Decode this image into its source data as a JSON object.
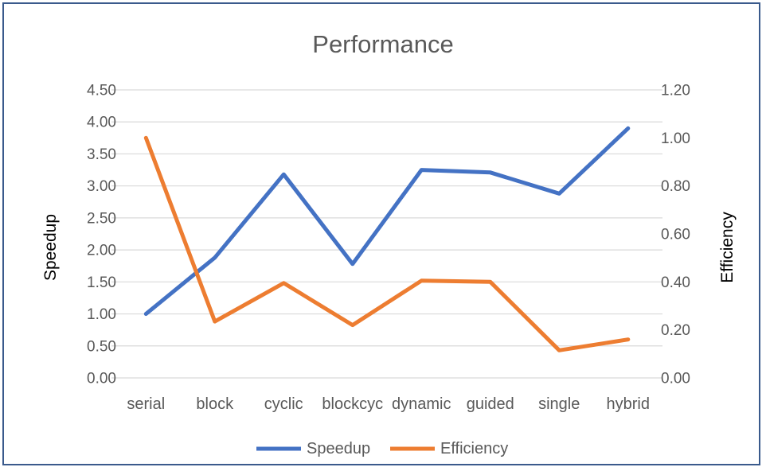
{
  "chart_data": {
    "type": "line",
    "title": "Performance",
    "categories": [
      "serial",
      "block",
      "cyclic",
      "blockcyc",
      "dynamic",
      "guided",
      "single",
      "hybrid"
    ],
    "y_left": {
      "label": "Speedup",
      "range": [
        0,
        4.5
      ],
      "ticks": [
        "0.00",
        "0.50",
        "1.00",
        "1.50",
        "2.00",
        "2.50",
        "3.00",
        "3.50",
        "4.00",
        "4.50"
      ]
    },
    "y_right": {
      "label": "Efficiency",
      "range": [
        0,
        1.2
      ],
      "ticks": [
        "0.00",
        "0.20",
        "0.40",
        "0.60",
        "0.80",
        "1.00",
        "1.20"
      ]
    },
    "grid": true,
    "legend_position": "bottom",
    "series": [
      {
        "name": "Speedup",
        "axis": "left",
        "color": "#4472c4",
        "values": [
          1.0,
          1.88,
          3.18,
          1.78,
          3.25,
          3.21,
          2.88,
          3.9
        ]
      },
      {
        "name": "Efficiency",
        "axis": "right",
        "color": "#ed7d31",
        "values": [
          1.0,
          0.235,
          0.395,
          0.22,
          0.405,
          0.4,
          0.115,
          0.16
        ]
      }
    ]
  }
}
